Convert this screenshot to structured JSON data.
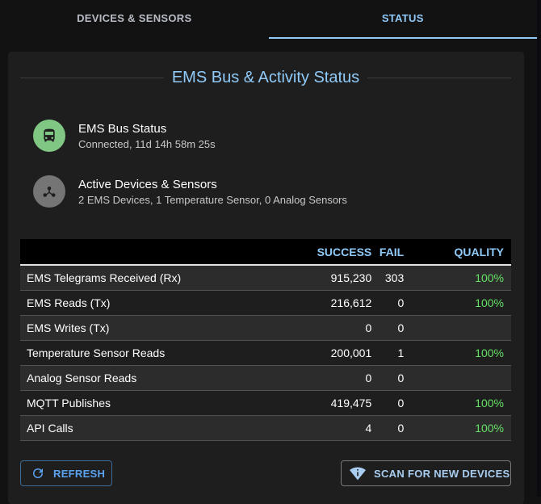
{
  "tabs": [
    {
      "label": "DEVICES & SENSORS",
      "active": false
    },
    {
      "label": "STATUS",
      "active": true
    }
  ],
  "card": {
    "title": "EMS Bus & Activity Status",
    "bus_status": {
      "icon": "bus-icon",
      "title": "EMS Bus Status",
      "subtitle": "Connected, 11d 14h 58m 25s",
      "color": "#81c784"
    },
    "active_devices": {
      "icon": "hub-icon",
      "title": "Active Devices & Sensors",
      "subtitle": "2 EMS Devices, 1 Temperature Sensor, 0 Analog Sensors",
      "color": "#757575"
    }
  },
  "table": {
    "headers": {
      "name": "",
      "success": "SUCCESS",
      "fail": "FAIL",
      "quality": "QUALITY"
    },
    "rows": [
      {
        "name": "EMS Telegrams Received (Rx)",
        "success": "915,230",
        "fail": "303",
        "quality": "100%"
      },
      {
        "name": "EMS Reads (Tx)",
        "success": "216,612",
        "fail": "0",
        "quality": "100%"
      },
      {
        "name": "EMS Writes (Tx)",
        "success": "0",
        "fail": "0",
        "quality": ""
      },
      {
        "name": "Temperature Sensor Reads",
        "success": "200,001",
        "fail": "1",
        "quality": "100%"
      },
      {
        "name": "Analog Sensor Reads",
        "success": "0",
        "fail": "0",
        "quality": ""
      },
      {
        "name": "MQTT Publishes",
        "success": "419,475",
        "fail": "0",
        "quality": "100%"
      },
      {
        "name": "API Calls",
        "success": "4",
        "fail": "0",
        "quality": "100%"
      }
    ]
  },
  "buttons": {
    "refresh": "REFRESH",
    "scan": "SCAN FOR NEW DEVICES"
  },
  "colors": {
    "accent": "#90caf9",
    "quality_good": "#66e066",
    "card_bg": "#1e1e1e",
    "page_bg": "#121212"
  }
}
